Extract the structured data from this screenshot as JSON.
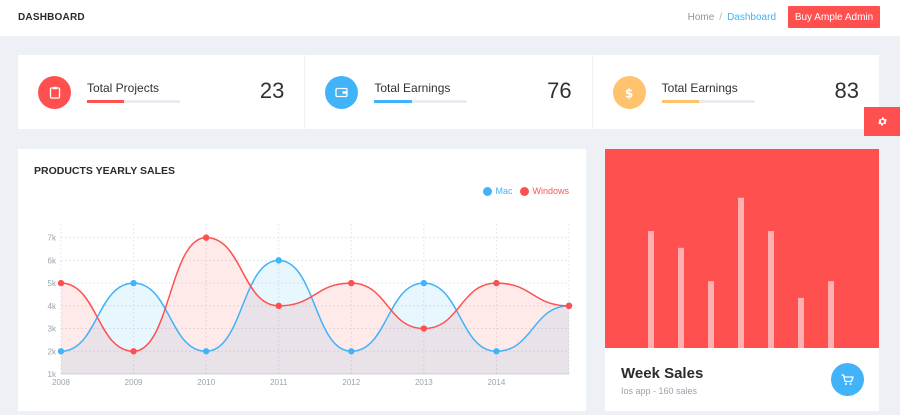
{
  "header": {
    "title": "DASHBOARD",
    "breadcrumb": [
      "Home",
      "Dashboard"
    ],
    "separator": "/",
    "cta_label": "Buy Ample Admin"
  },
  "stats": [
    {
      "label": "Total Projects",
      "value": "23",
      "icon": "clipboard-icon",
      "color": "#ff5050",
      "progress": 0.4
    },
    {
      "label": "Total Earnings",
      "value": "76",
      "icon": "wallet-icon",
      "color": "#41b3f9",
      "progress": 0.4
    },
    {
      "label": "Total Earnings",
      "value": "83",
      "icon": "dollar-icon",
      "color": "#ffc36d",
      "progress": 0.4
    }
  ],
  "sales_card": {
    "title": "PRODUCTS YEARLY SALES"
  },
  "chart_data": {
    "type": "area",
    "x": [
      2008,
      2009,
      2010,
      2011,
      2012,
      2013,
      2014,
      2015
    ],
    "x_tick_labels": [
      "2008",
      "2009",
      "2010",
      "2011",
      "2012",
      "2013",
      "2014"
    ],
    "y_tick_labels": [
      "1k",
      "2k",
      "3k",
      "4k",
      "5k",
      "6k",
      "7k"
    ],
    "ylim": [
      1,
      7.6
    ],
    "series": [
      {
        "name": "Mac",
        "values": [
          2,
          5,
          2,
          6,
          2,
          5,
          2,
          4
        ],
        "color": "#41b3f9"
      },
      {
        "name": "Windows",
        "values": [
          5,
          2,
          7,
          4,
          5,
          3,
          5,
          4
        ],
        "color": "#ff5050"
      }
    ],
    "grid": true,
    "legend": "top-right"
  },
  "week_sales": {
    "title": "Week Sales",
    "subtitle": "Ios app - 160 sales",
    "values": [
      7,
      6,
      4,
      9,
      7,
      3,
      4
    ]
  }
}
